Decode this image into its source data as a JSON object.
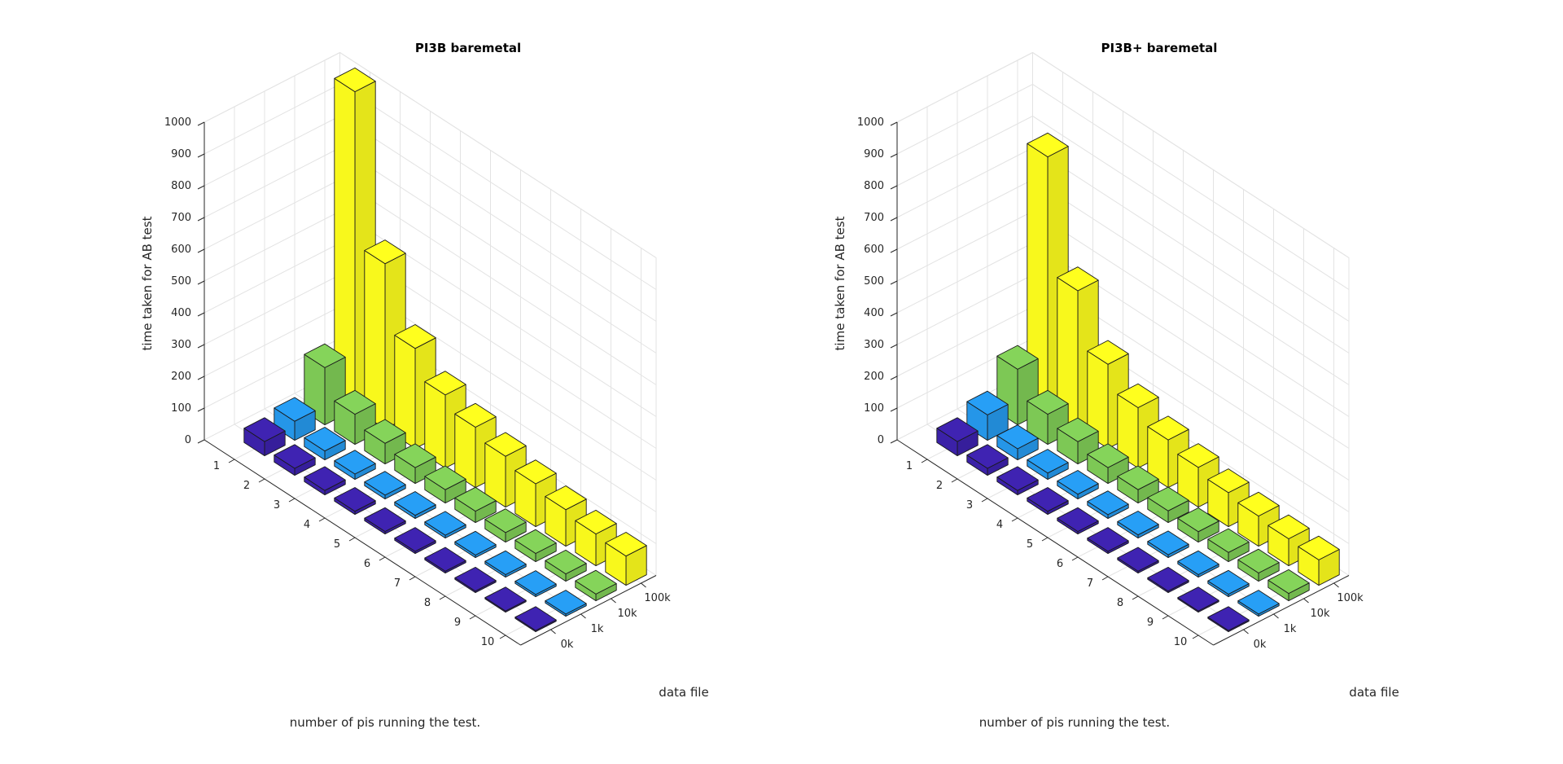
{
  "chart_data": [
    {
      "type": "bar3",
      "title": "PI3B baremetal",
      "xlabel": "number of pis running the test.",
      "ylabel": "data file",
      "zlabel": "time taken for AB test",
      "x_categories": [
        "1",
        "2",
        "3",
        "4",
        "5",
        "6",
        "7",
        "8",
        "9",
        "10"
      ],
      "y_categories": [
        "0k",
        "1k",
        "10k",
        "100k"
      ],
      "zlim": [
        0,
        1000
      ],
      "z_ticks": [
        0,
        100,
        200,
        300,
        400,
        500,
        600,
        700,
        800,
        900,
        1000
      ],
      "grid": true,
      "series": [
        {
          "values": [
            45,
            22,
            14,
            10,
            8,
            7,
            6,
            5,
            4,
            4
          ],
          "color": "#3b21a8"
        },
        {
          "values": [
            60,
            28,
            17,
            12,
            10,
            9,
            8,
            8,
            7,
            7
          ],
          "color": "#2596e8"
        },
        {
          "values": [
            180,
            95,
            65,
            50,
            42,
            36,
            30,
            26,
            23,
            21
          ],
          "color": "#7dc855"
        },
        {
          "values": [
            1000,
            520,
            315,
            230,
            190,
            160,
            135,
            115,
            100,
            92
          ],
          "color": "#f8f81c"
        }
      ]
    },
    {
      "type": "bar3",
      "title": "PI3B+ baremetal",
      "xlabel": "number of pis running the test.",
      "ylabel": "data file",
      "zlabel": "time taken for AB test",
      "x_categories": [
        "1",
        "2",
        "3",
        "4",
        "5",
        "6",
        "7",
        "8",
        "9",
        "10"
      ],
      "y_categories": [
        "0k",
        "1k",
        "10k",
        "100k"
      ],
      "zlim": [
        0,
        1000
      ],
      "z_ticks": [
        0,
        100,
        200,
        300,
        400,
        500,
        600,
        700,
        800,
        900,
        1000
      ],
      "grid": true,
      "series": [
        {
          "values": [
            45,
            22,
            14,
            10,
            8,
            7,
            6,
            5,
            4,
            4
          ],
          "color": "#3b21a8"
        },
        {
          "values": [
            80,
            35,
            20,
            15,
            12,
            10,
            9,
            8,
            8,
            7
          ],
          "color": "#2596e8"
        },
        {
          "values": [
            175,
            95,
            70,
            50,
            42,
            37,
            33,
            29,
            26,
            23
          ],
          "color": "#7dc855"
        },
        {
          "values": [
            795,
            435,
            265,
            190,
            150,
            125,
            107,
            95,
            85,
            80
          ],
          "color": "#f8f81c"
        }
      ]
    }
  ]
}
